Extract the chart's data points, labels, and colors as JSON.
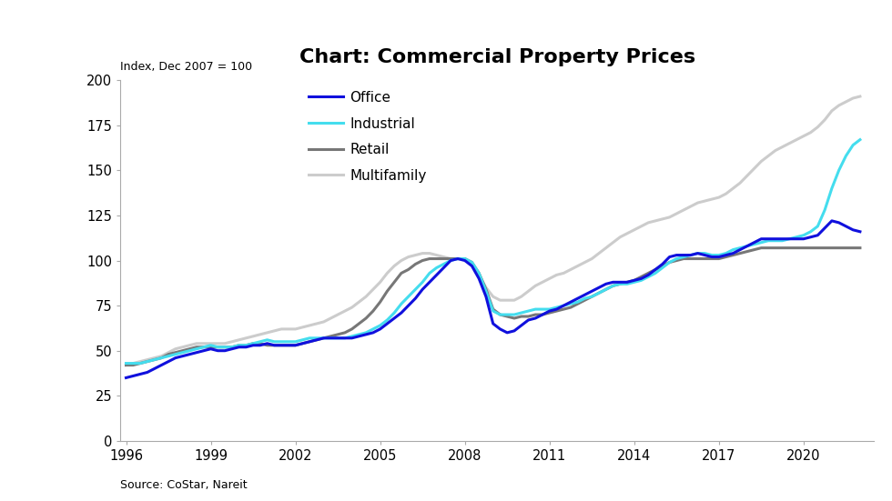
{
  "title": "Chart: Commercial Property Prices",
  "ylabel": "Index, Dec 2007 = 100",
  "source": "Source: CoStar, Nareit",
  "ylim": [
    0,
    200
  ],
  "yticks": [
    0,
    25,
    50,
    75,
    100,
    125,
    150,
    175,
    200
  ],
  "xticks": [
    1996,
    1999,
    2002,
    2005,
    2008,
    2011,
    2014,
    2017,
    2020
  ],
  "xlim": [
    1995.8,
    2022.5
  ],
  "office_color": "#1010DD",
  "industrial_color": "#44DDEE",
  "retail_color": "#777777",
  "multifamily_color": "#CCCCCC",
  "office": {
    "x": [
      1996.0,
      1996.25,
      1996.5,
      1996.75,
      1997.0,
      1997.25,
      1997.5,
      1997.75,
      1998.0,
      1998.25,
      1998.5,
      1998.75,
      1999.0,
      1999.25,
      1999.5,
      1999.75,
      2000.0,
      2000.25,
      2000.5,
      2000.75,
      2001.0,
      2001.25,
      2001.5,
      2001.75,
      2002.0,
      2002.25,
      2002.5,
      2002.75,
      2003.0,
      2003.25,
      2003.5,
      2003.75,
      2004.0,
      2004.25,
      2004.5,
      2004.75,
      2005.0,
      2005.25,
      2005.5,
      2005.75,
      2006.0,
      2006.25,
      2006.5,
      2006.75,
      2007.0,
      2007.25,
      2007.5,
      2007.75,
      2008.0,
      2008.25,
      2008.5,
      2008.75,
      2009.0,
      2009.25,
      2009.5,
      2009.75,
      2010.0,
      2010.25,
      2010.5,
      2010.75,
      2011.0,
      2011.25,
      2011.5,
      2011.75,
      2012.0,
      2012.25,
      2012.5,
      2012.75,
      2013.0,
      2013.25,
      2013.5,
      2013.75,
      2014.0,
      2014.25,
      2014.5,
      2014.75,
      2015.0,
      2015.25,
      2015.5,
      2015.75,
      2016.0,
      2016.25,
      2016.5,
      2016.75,
      2017.0,
      2017.25,
      2017.5,
      2017.75,
      2018.0,
      2018.25,
      2018.5,
      2018.75,
      2019.0,
      2019.25,
      2019.5,
      2019.75,
      2020.0,
      2020.25,
      2020.5,
      2020.75,
      2021.0,
      2021.25,
      2021.5,
      2021.75,
      2022.0
    ],
    "y": [
      35,
      36,
      37,
      38,
      40,
      42,
      44,
      46,
      47,
      48,
      49,
      50,
      51,
      50,
      50,
      51,
      52,
      52,
      53,
      53,
      54,
      53,
      53,
      53,
      53,
      54,
      55,
      56,
      57,
      57,
      57,
      57,
      57,
      58,
      59,
      60,
      62,
      65,
      68,
      71,
      75,
      79,
      84,
      88,
      92,
      96,
      100,
      101,
      100,
      97,
      90,
      80,
      65,
      62,
      60,
      61,
      64,
      67,
      68,
      70,
      72,
      73,
      75,
      77,
      79,
      81,
      83,
      85,
      87,
      88,
      88,
      88,
      89,
      90,
      92,
      95,
      98,
      102,
      103,
      103,
      103,
      104,
      103,
      102,
      102,
      103,
      104,
      106,
      108,
      110,
      112,
      112,
      112,
      112,
      112,
      112,
      112,
      113,
      114,
      118,
      122,
      121,
      119,
      117,
      116
    ]
  },
  "industrial": {
    "x": [
      1996.0,
      1996.25,
      1996.5,
      1996.75,
      1997.0,
      1997.25,
      1997.5,
      1997.75,
      1998.0,
      1998.25,
      1998.5,
      1998.75,
      1999.0,
      1999.25,
      1999.5,
      1999.75,
      2000.0,
      2000.25,
      2000.5,
      2000.75,
      2001.0,
      2001.25,
      2001.5,
      2001.75,
      2002.0,
      2002.25,
      2002.5,
      2002.75,
      2003.0,
      2003.25,
      2003.5,
      2003.75,
      2004.0,
      2004.25,
      2004.5,
      2004.75,
      2005.0,
      2005.25,
      2005.5,
      2005.75,
      2006.0,
      2006.25,
      2006.5,
      2006.75,
      2007.0,
      2007.25,
      2007.5,
      2007.75,
      2008.0,
      2008.25,
      2008.5,
      2008.75,
      2009.0,
      2009.25,
      2009.5,
      2009.75,
      2010.0,
      2010.25,
      2010.5,
      2010.75,
      2011.0,
      2011.25,
      2011.5,
      2011.75,
      2012.0,
      2012.25,
      2012.5,
      2012.75,
      2013.0,
      2013.25,
      2013.5,
      2013.75,
      2014.0,
      2014.25,
      2014.5,
      2014.75,
      2015.0,
      2015.25,
      2015.5,
      2015.75,
      2016.0,
      2016.25,
      2016.5,
      2016.75,
      2017.0,
      2017.25,
      2017.5,
      2017.75,
      2018.0,
      2018.25,
      2018.5,
      2018.75,
      2019.0,
      2019.25,
      2019.5,
      2019.75,
      2020.0,
      2020.25,
      2020.5,
      2020.75,
      2021.0,
      2021.25,
      2021.5,
      2021.75,
      2022.0
    ],
    "y": [
      43,
      43,
      43,
      44,
      45,
      46,
      47,
      48,
      49,
      50,
      51,
      52,
      53,
      52,
      52,
      52,
      53,
      53,
      54,
      55,
      56,
      55,
      55,
      55,
      55,
      56,
      57,
      57,
      57,
      57,
      57,
      57,
      58,
      59,
      60,
      62,
      64,
      67,
      71,
      76,
      80,
      84,
      88,
      93,
      96,
      98,
      100,
      101,
      101,
      99,
      93,
      83,
      72,
      70,
      70,
      70,
      71,
      72,
      73,
      73,
      73,
      74,
      75,
      76,
      77,
      79,
      80,
      82,
      84,
      86,
      87,
      87,
      88,
      89,
      91,
      93,
      96,
      99,
      101,
      102,
      103,
      104,
      104,
      103,
      103,
      104,
      106,
      107,
      108,
      109,
      110,
      111,
      111,
      111,
      112,
      113,
      114,
      116,
      119,
      128,
      140,
      150,
      158,
      164,
      167
    ]
  },
  "retail": {
    "x": [
      1996.0,
      1996.25,
      1996.5,
      1996.75,
      1997.0,
      1997.25,
      1997.5,
      1997.75,
      1998.0,
      1998.25,
      1998.5,
      1998.75,
      1999.0,
      1999.25,
      1999.5,
      1999.75,
      2000.0,
      2000.25,
      2000.5,
      2000.75,
      2001.0,
      2001.25,
      2001.5,
      2001.75,
      2002.0,
      2002.25,
      2002.5,
      2002.75,
      2003.0,
      2003.25,
      2003.5,
      2003.75,
      2004.0,
      2004.25,
      2004.5,
      2004.75,
      2005.0,
      2005.25,
      2005.5,
      2005.75,
      2006.0,
      2006.25,
      2006.5,
      2006.75,
      2007.0,
      2007.25,
      2007.5,
      2007.75,
      2008.0,
      2008.25,
      2008.5,
      2008.75,
      2009.0,
      2009.25,
      2009.5,
      2009.75,
      2010.0,
      2010.25,
      2010.5,
      2010.75,
      2011.0,
      2011.25,
      2011.5,
      2011.75,
      2012.0,
      2012.25,
      2012.5,
      2012.75,
      2013.0,
      2013.25,
      2013.5,
      2013.75,
      2014.0,
      2014.25,
      2014.5,
      2014.75,
      2015.0,
      2015.25,
      2015.5,
      2015.75,
      2016.0,
      2016.25,
      2016.5,
      2016.75,
      2017.0,
      2017.25,
      2017.5,
      2017.75,
      2018.0,
      2018.25,
      2018.5,
      2018.75,
      2019.0,
      2019.25,
      2019.5,
      2019.75,
      2020.0,
      2020.25,
      2020.5,
      2020.75,
      2021.0,
      2021.25,
      2021.5,
      2021.75,
      2022.0
    ],
    "y": [
      42,
      42,
      43,
      44,
      45,
      46,
      48,
      49,
      50,
      51,
      52,
      52,
      52,
      52,
      52,
      52,
      53,
      53,
      54,
      54,
      53,
      53,
      53,
      53,
      53,
      54,
      55,
      56,
      57,
      58,
      59,
      60,
      62,
      65,
      68,
      72,
      77,
      83,
      88,
      93,
      95,
      98,
      100,
      101,
      101,
      101,
      101,
      101,
      101,
      99,
      93,
      84,
      73,
      70,
      69,
      68,
      69,
      69,
      70,
      70,
      71,
      72,
      73,
      74,
      76,
      78,
      80,
      82,
      84,
      86,
      87,
      88,
      89,
      91,
      93,
      95,
      97,
      99,
      100,
      101,
      101,
      101,
      101,
      101,
      101,
      102,
      103,
      104,
      105,
      106,
      107,
      107,
      107,
      107,
      107,
      107,
      107,
      107,
      107,
      107,
      107,
      107,
      107,
      107,
      107
    ]
  },
  "multifamily": {
    "x": [
      1996.0,
      1996.25,
      1996.5,
      1996.75,
      1997.0,
      1997.25,
      1997.5,
      1997.75,
      1998.0,
      1998.25,
      1998.5,
      1998.75,
      1999.0,
      1999.25,
      1999.5,
      1999.75,
      2000.0,
      2000.25,
      2000.5,
      2000.75,
      2001.0,
      2001.25,
      2001.5,
      2001.75,
      2002.0,
      2002.25,
      2002.5,
      2002.75,
      2003.0,
      2003.25,
      2003.5,
      2003.75,
      2004.0,
      2004.25,
      2004.5,
      2004.75,
      2005.0,
      2005.25,
      2005.5,
      2005.75,
      2006.0,
      2006.25,
      2006.5,
      2006.75,
      2007.0,
      2007.25,
      2007.5,
      2007.75,
      2008.0,
      2008.25,
      2008.5,
      2008.75,
      2009.0,
      2009.25,
      2009.5,
      2009.75,
      2010.0,
      2010.25,
      2010.5,
      2010.75,
      2011.0,
      2011.25,
      2011.5,
      2011.75,
      2012.0,
      2012.25,
      2012.5,
      2012.75,
      2013.0,
      2013.25,
      2013.5,
      2013.75,
      2014.0,
      2014.25,
      2014.5,
      2014.75,
      2015.0,
      2015.25,
      2015.5,
      2015.75,
      2016.0,
      2016.25,
      2016.5,
      2016.75,
      2017.0,
      2017.25,
      2017.5,
      2017.75,
      2018.0,
      2018.25,
      2018.5,
      2018.75,
      2019.0,
      2019.25,
      2019.5,
      2019.75,
      2020.0,
      2020.25,
      2020.5,
      2020.75,
      2021.0,
      2021.25,
      2021.5,
      2021.75,
      2022.0
    ],
    "y": [
      42,
      43,
      44,
      45,
      46,
      47,
      49,
      51,
      52,
      53,
      54,
      54,
      54,
      54,
      54,
      55,
      56,
      57,
      58,
      59,
      60,
      61,
      62,
      62,
      62,
      63,
      64,
      65,
      66,
      68,
      70,
      72,
      74,
      77,
      80,
      84,
      88,
      93,
      97,
      100,
      102,
      103,
      104,
      104,
      103,
      102,
      101,
      101,
      101,
      98,
      92,
      85,
      80,
      78,
      78,
      78,
      80,
      83,
      86,
      88,
      90,
      92,
      93,
      95,
      97,
      99,
      101,
      104,
      107,
      110,
      113,
      115,
      117,
      119,
      121,
      122,
      123,
      124,
      126,
      128,
      130,
      132,
      133,
      134,
      135,
      137,
      140,
      143,
      147,
      151,
      155,
      158,
      161,
      163,
      165,
      167,
      169,
      171,
      174,
      178,
      183,
      186,
      188,
      190,
      191
    ]
  }
}
